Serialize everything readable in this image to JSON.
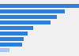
{
  "chart_data": {
    "type": "bar",
    "orientation": "horizontal",
    "categories": [
      null,
      null,
      null,
      null,
      null,
      null,
      null,
      null,
      null
    ],
    "values": [
      100,
      82,
      72,
      64,
      42,
      35,
      30,
      28,
      12
    ],
    "colors": [
      "#2e7fd9",
      "#2e7fd9",
      "#2e7fd9",
      "#2e7fd9",
      "#2e7fd9",
      "#2e7fd9",
      "#2e7fd9",
      "#2e7fd9",
      "#a8c8f0"
    ],
    "xlim": [
      0,
      100
    ],
    "tick_labels": false
  }
}
